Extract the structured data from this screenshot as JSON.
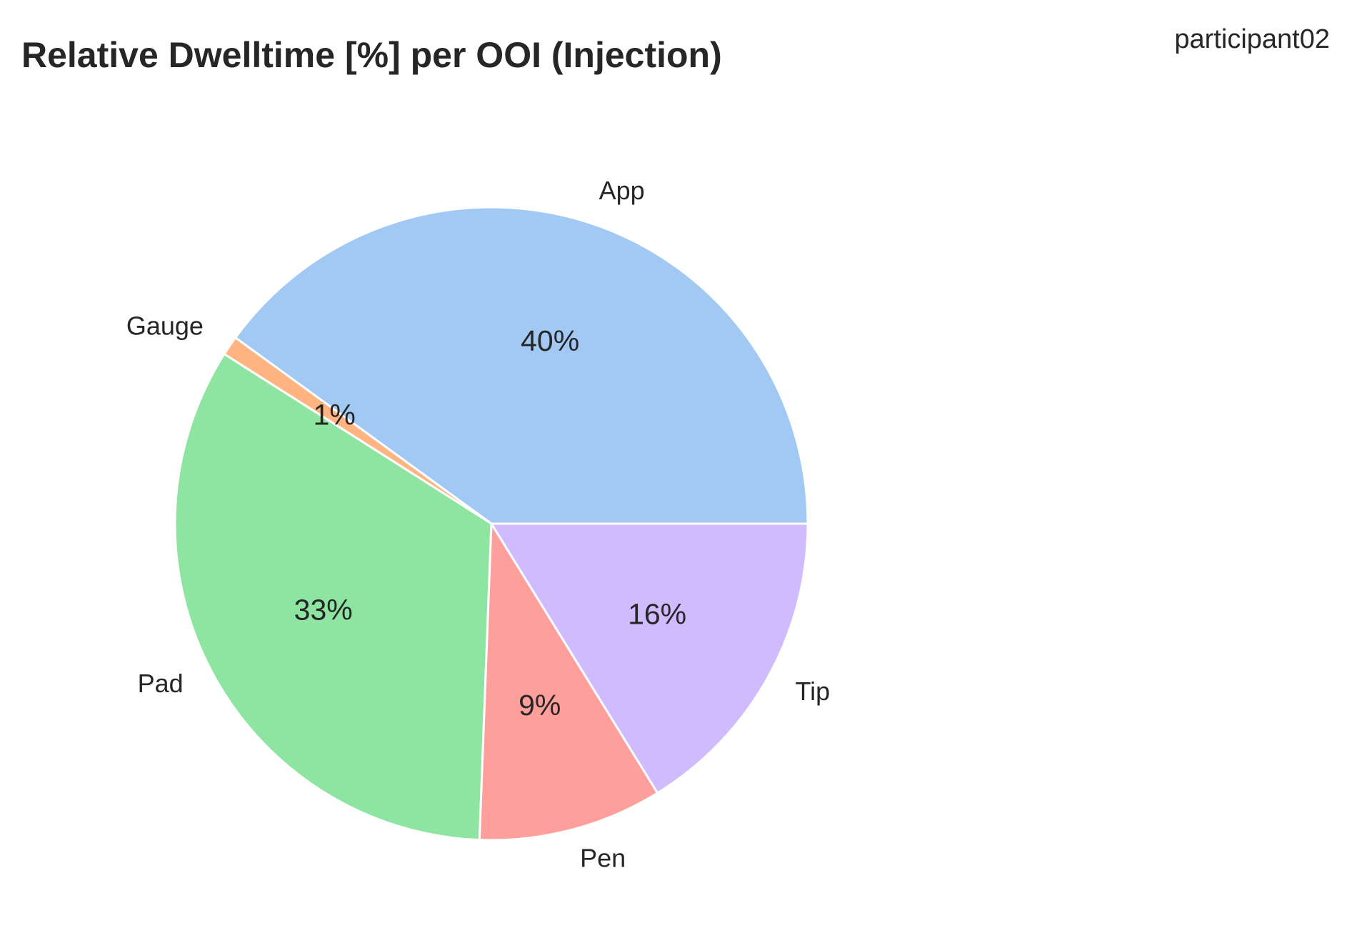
{
  "chart_data": {
    "type": "pie",
    "title": "Relative Dwelltime [%] per OOI (Injection)",
    "participant": "participant02",
    "slices": [
      {
        "label": "App",
        "value": 40.0,
        "pct_label": "40%",
        "color": "#a1c9f4"
      },
      {
        "label": "Gauge",
        "value": 1.0,
        "pct_label": "1%",
        "color": "#ffb482"
      },
      {
        "label": "Pad",
        "value": 33.4,
        "pct_label": "33%",
        "color": "#8de5a1"
      },
      {
        "label": "Pen",
        "value": 9.4,
        "pct_label": "9%",
        "color": "#ff9f9b"
      },
      {
        "label": "Tip",
        "value": 16.2,
        "pct_label": "16%",
        "color": "#d0bbff"
      }
    ],
    "start_angle_deg": 0,
    "direction": "counterclockwise",
    "edge_color": "#ffffff"
  }
}
